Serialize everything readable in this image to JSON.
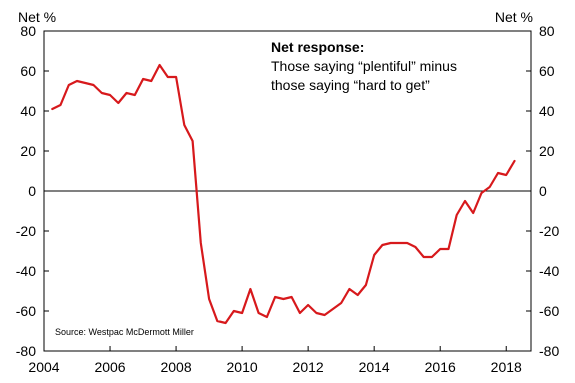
{
  "chart_data": {
    "type": "line",
    "left_unit_label": "Net %",
    "right_unit_label": "Net %",
    "annotation": {
      "title": "Net response:",
      "lines": [
        "Those saying “plentiful” minus",
        "those saying “hard to get”"
      ]
    },
    "source": "Source: Westpac McDermott Miller",
    "ylim": [
      -80,
      80
    ],
    "xlim": [
      2004,
      2018.75
    ],
    "y_ticks": [
      80,
      60,
      40,
      20,
      0,
      -20,
      -40,
      -60,
      -80
    ],
    "y_tick_labels": [
      "80",
      "60",
      "40",
      "20",
      "0",
      "-20",
      "-40",
      "-60",
      "-80"
    ],
    "x_ticks": [
      2004,
      2006,
      2008,
      2010,
      2012,
      2014,
      2016,
      2018
    ],
    "x_tick_labels": [
      "2004",
      "2006",
      "2008",
      "2010",
      "2012",
      "2014",
      "2016",
      "2018"
    ],
    "grid": false,
    "zero_line": true,
    "series": [
      {
        "color": "#d7191c",
        "x": [
          2004.25,
          2004.5,
          2004.75,
          2005.0,
          2005.25,
          2005.5,
          2005.75,
          2006.0,
          2006.25,
          2006.5,
          2006.75,
          2007.0,
          2007.25,
          2007.5,
          2007.75,
          2008.0,
          2008.25,
          2008.5,
          2008.75,
          2009.0,
          2009.25,
          2009.5,
          2009.75,
          2010.0,
          2010.25,
          2010.5,
          2010.75,
          2011.0,
          2011.25,
          2011.5,
          2011.75,
          2012.0,
          2012.25,
          2012.5,
          2012.75,
          2013.0,
          2013.25,
          2013.5,
          2013.75,
          2014.0,
          2014.25,
          2014.5,
          2014.75,
          2015.0,
          2015.25,
          2015.5,
          2015.75,
          2016.0,
          2016.25,
          2016.5,
          2016.75,
          2017.0,
          2017.25,
          2017.5,
          2017.75,
          2018.0,
          2018.25
        ],
        "values": [
          41,
          43,
          53,
          55,
          54,
          53,
          49,
          48,
          44,
          49,
          48,
          56,
          55,
          63,
          57,
          57,
          33,
          25,
          -26,
          -54,
          -65,
          -66,
          -60,
          -61,
          -49,
          -61,
          -63,
          -53,
          -54,
          -53,
          -61,
          -57,
          -61,
          -62,
          -59,
          -56,
          -49,
          -52,
          -47,
          -32,
          -27,
          -26,
          -26,
          -26,
          -28,
          -33,
          -33,
          -29,
          -29,
          -12,
          -5,
          -11,
          -1,
          2,
          9,
          8,
          15
        ]
      }
    ]
  }
}
